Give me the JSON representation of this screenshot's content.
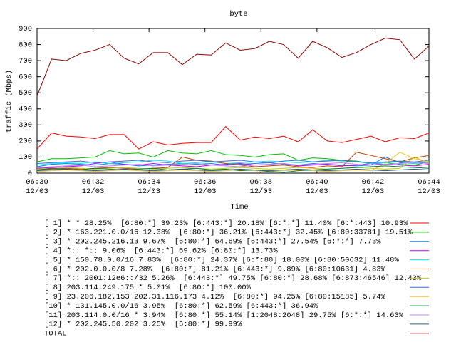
{
  "chart_data": {
    "type": "line",
    "title": "byte",
    "x_label": "Time",
    "y_label": "traffic (Mbps)",
    "x": [
      390,
      390.52,
      391.04,
      391.56,
      392.07,
      392.59,
      393.11,
      393.63,
      394.15,
      394.67,
      395.19,
      395.7,
      396.22,
      396.74,
      397.26,
      397.78,
      398.3,
      398.81,
      399.33,
      399.85,
      400.37,
      400.89,
      401.41,
      401.93,
      402.44,
      402.96,
      403.48,
      404
    ],
    "xlim": [
      390,
      404
    ],
    "xticks": [
      {
        "value": 390,
        "label": "06:30\n12/03"
      },
      {
        "value": 392,
        "label": "06:32\n12/03"
      },
      {
        "value": 394,
        "label": "06:34\n12/03"
      },
      {
        "value": 396,
        "label": "06:36\n12/03"
      },
      {
        "value": 398,
        "label": "06:38\n12/03"
      },
      {
        "value": 400,
        "label": "06:40\n12/03"
      },
      {
        "value": 402,
        "label": "06:42\n12/03"
      },
      {
        "value": 404,
        "label": "06:44\n12/03"
      }
    ],
    "ylim": [
      0,
      900
    ],
    "yticks": [
      0,
      100,
      200,
      300,
      400,
      500,
      600,
      700,
      800,
      900
    ],
    "series": [
      {
        "name": "[ 1] * * 28.25%  [6:80:*] 39.23% [6:443:*] 20.18% [6:*:*] 11.40% [6:*:443] 10.93%",
        "color": "#ff0000",
        "values": [
          150,
          250,
          230,
          225,
          215,
          240,
          240,
          150,
          195,
          175,
          185,
          190,
          190,
          290,
          205,
          225,
          215,
          230,
          195,
          270,
          200,
          190,
          210,
          230,
          195,
          220,
          215,
          250
        ]
      },
      {
        "name": "[ 2] * 163.221.0.0/16 12.38%  [6:80:*] 36.21% [6:443:*] 32.45% [6:80:33781] 19.51%",
        "color": "#00c000",
        "values": [
          70,
          90,
          90,
          95,
          100,
          140,
          120,
          125,
          100,
          140,
          125,
          120,
          140,
          115,
          110,
          100,
          115,
          120,
          80,
          95,
          90,
          80,
          75,
          60,
          65,
          55,
          50,
          70
        ]
      },
      {
        "name": "[ 3] * 202.245.216.13 9.67%  [6:80:*] 64.69% [6:443:*] 27.54% [6:*:*] 7.73%",
        "color": "#0080ff",
        "values": [
          40,
          55,
          60,
          55,
          50,
          60,
          55,
          45,
          50,
          55,
          60,
          55,
          60,
          50,
          55,
          60,
          65,
          55,
          50,
          60,
          55,
          50,
          45,
          50,
          100,
          65,
          60,
          70
        ]
      },
      {
        "name": "[ 4] *:: *:: 9.06%  [6:443:*] 69.62% [6:80:*] 13.73%",
        "color": "#c000ff",
        "values": [
          30,
          35,
          40,
          45,
          60,
          70,
          55,
          50,
          60,
          50,
          45,
          40,
          50,
          55,
          60,
          50,
          55,
          60,
          45,
          50,
          55,
          45,
          50,
          60,
          55,
          50,
          45,
          55
        ]
      },
      {
        "name": "[ 5] * 150.78.0.0/16 7.83%  [6:80:*] 24.37% [6:*:80] 18.00% [6:80:50632] 11.48%",
        "color": "#00eeee",
        "values": [
          50,
          60,
          65,
          60,
          70,
          60,
          65,
          70,
          80,
          75,
          60,
          65,
          70,
          60,
          65,
          70,
          75,
          70,
          65,
          70,
          80,
          75,
          70,
          60,
          65,
          70,
          60,
          65
        ]
      },
      {
        "name": "[ 6] * 202.0.0.0/8 7.28%  [6:80:*] 81.21% [6:443:*] 9.89% [6:80:10631] 4.83%",
        "color": "#c04000",
        "values": [
          20,
          25,
          30,
          25,
          30,
          35,
          30,
          25,
          30,
          35,
          100,
          80,
          75,
          60,
          50,
          40,
          45,
          50,
          40,
          35,
          45,
          40,
          130,
          110,
          90,
          70,
          95,
          110
        ]
      },
      {
        "name": "[ 7] *:: 2001:12e6::/32 5.26%  [6:443:*] 49.75% [6:80:*] 28.68% [6:873:46546] 12.43%",
        "color": "#c8c800",
        "values": [
          25,
          30,
          35,
          30,
          25,
          30,
          35,
          30,
          25,
          30,
          35,
          30,
          25,
          30,
          35,
          30,
          25,
          30,
          35,
          30,
          25,
          30,
          35,
          30,
          25,
          30,
          100,
          60
        ]
      },
      {
        "name": "[ 8] 203.114.249.175 * 5.01%  [6:80:*] 100.00%",
        "color": "#4169e1",
        "values": [
          60,
          65,
          70,
          75,
          65,
          70,
          75,
          80,
          70,
          65,
          75,
          80,
          70,
          75,
          80,
          70,
          65,
          75,
          80,
          70,
          75,
          80,
          70,
          65,
          70,
          75,
          70,
          80
        ]
      },
      {
        "name": "[ 9] 23.206.182.153 202.31.116.173 4.12%  [6:80:*] 94.25% [6:80:15185] 5.74%",
        "color": "#ffc020",
        "values": [
          10,
          15,
          20,
          15,
          10,
          15,
          20,
          15,
          10,
          15,
          20,
          15,
          10,
          15,
          20,
          15,
          10,
          15,
          20,
          15,
          10,
          15,
          20,
          15,
          60,
          130,
          90,
          70
        ]
      },
      {
        "name": "[10] * 131.145.0.0/16 3.95%  [6:80:*] 62.59% [6:443:*] 36.94%",
        "color": "#008040",
        "values": [
          20,
          30,
          25,
          20,
          30,
          25,
          20,
          25,
          30,
          20,
          25,
          30,
          20,
          25,
          15,
          20,
          10,
          5,
          15,
          20,
          25,
          30,
          35,
          40,
          45,
          40,
          35,
          30
        ]
      },
      {
        "name": "[11] 203.114.0.0/16 * 3.94%  [6:80:*] 55.14% [1:2048:2048] 29.75% [6:*:*] 14.63%",
        "color": "#c080ff",
        "values": [
          35,
          40,
          45,
          50,
          40,
          45,
          50,
          55,
          45,
          50,
          55,
          60,
          50,
          45,
          40,
          50,
          55,
          60,
          50,
          55,
          60,
          65,
          55,
          50,
          55,
          60,
          65,
          60
        ]
      },
      {
        "name": "[12] * 202.245.50.202 3.25%  [6:80:*] 99.99%",
        "color": "#306080",
        "values": [
          15,
          20,
          25,
          20,
          15,
          20,
          25,
          20,
          15,
          20,
          25,
          20,
          15,
          20,
          25,
          20,
          15,
          20,
          25,
          20,
          15,
          20,
          25,
          20,
          15,
          20,
          25,
          20
        ]
      },
      {
        "name": "TOTAL",
        "color": "#8b0000",
        "values": [
          480,
          710,
          700,
          745,
          765,
          800,
          715,
          680,
          750,
          750,
          675,
          740,
          735,
          810,
          765,
          775,
          820,
          800,
          715,
          820,
          780,
          720,
          750,
          800,
          840,
          830,
          710,
          790
        ]
      }
    ]
  }
}
